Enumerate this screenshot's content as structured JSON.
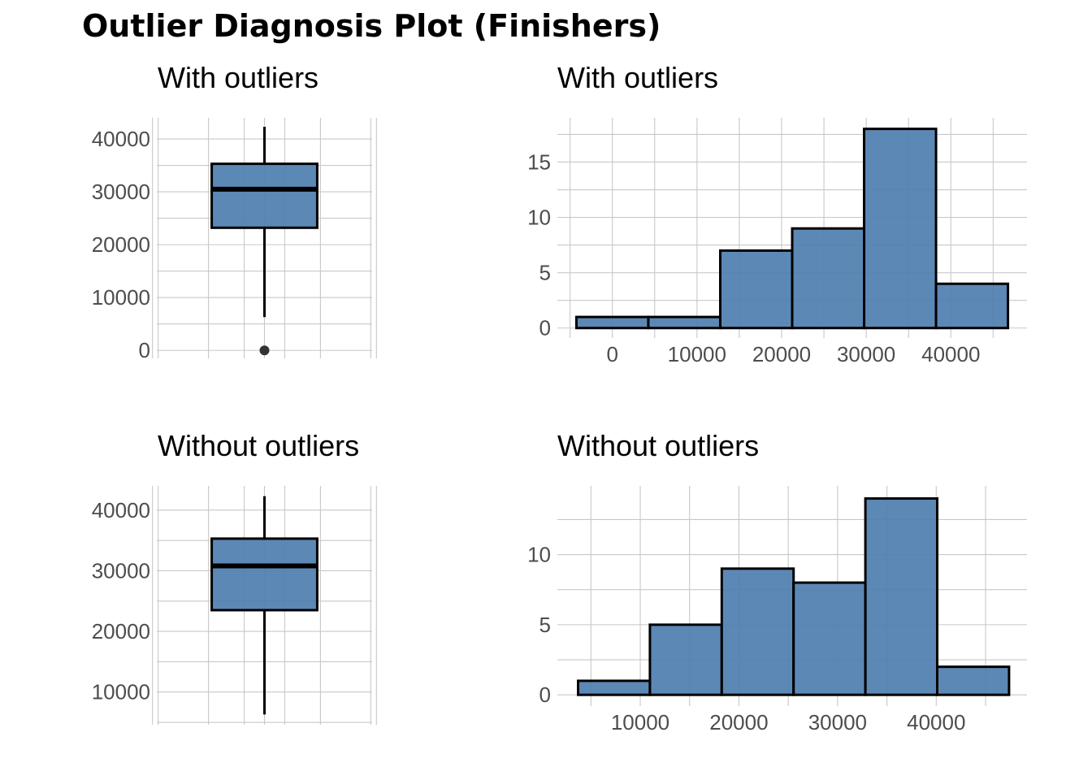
{
  "title": "Outlier Diagnosis Plot (Finishers)",
  "colors": {
    "fill": "#4e7eb0",
    "outline": "#000000",
    "grid": "#c8c8c8",
    "point": "#333333"
  },
  "chart_data": [
    {
      "type": "box",
      "title": "With outliers",
      "ylim": [
        -1500,
        44000
      ],
      "yticks": [
        0,
        10000,
        20000,
        30000,
        40000
      ],
      "box": {
        "whisker_low": 6300,
        "q1": 23200,
        "median": 30500,
        "q3": 35300,
        "whisker_high": 42300
      },
      "outliers": [
        0
      ],
      "grid": true
    },
    {
      "type": "bar",
      "subtype": "histogram",
      "title": "With outliers",
      "xlim": [
        -6500,
        49000
      ],
      "ylim": [
        -0.9,
        19
      ],
      "xticks": [
        0,
        10000,
        20000,
        30000,
        40000
      ],
      "yticks": [
        0,
        5,
        10,
        15
      ],
      "bins": [
        {
          "x0": -4250,
          "x1": 4250,
          "count": 1
        },
        {
          "x0": 4250,
          "x1": 12750,
          "count": 1
        },
        {
          "x0": 12750,
          "x1": 21250,
          "count": 7
        },
        {
          "x0": 21250,
          "x1": 29750,
          "count": 9
        },
        {
          "x0": 29750,
          "x1": 38250,
          "count": 18
        },
        {
          "x0": 38250,
          "x1": 46750,
          "count": 4
        }
      ],
      "grid": true
    },
    {
      "type": "box",
      "title": "Without outliers",
      "ylim": [
        4600,
        44000
      ],
      "yticks": [
        10000,
        20000,
        30000,
        40000
      ],
      "box": {
        "whisker_low": 6300,
        "q1": 23500,
        "median": 30800,
        "q3": 35300,
        "whisker_high": 42300
      },
      "outliers": [],
      "grid": true
    },
    {
      "type": "bar",
      "subtype": "histogram",
      "title": "Without outliers",
      "xlim": [
        1600,
        49200
      ],
      "ylim": [
        -0.8,
        14.9
      ],
      "xticks": [
        10000,
        20000,
        30000,
        40000
      ],
      "yticks": [
        0,
        5,
        10
      ],
      "bins": [
        {
          "x0": 3700,
          "x1": 10980,
          "count": 1
        },
        {
          "x0": 10980,
          "x1": 18260,
          "count": 5
        },
        {
          "x0": 18260,
          "x1": 25540,
          "count": 9
        },
        {
          "x0": 25540,
          "x1": 32820,
          "count": 8
        },
        {
          "x0": 32820,
          "x1": 40100,
          "count": 14
        },
        {
          "x0": 40100,
          "x1": 47380,
          "count": 2
        }
      ],
      "grid": true
    }
  ]
}
